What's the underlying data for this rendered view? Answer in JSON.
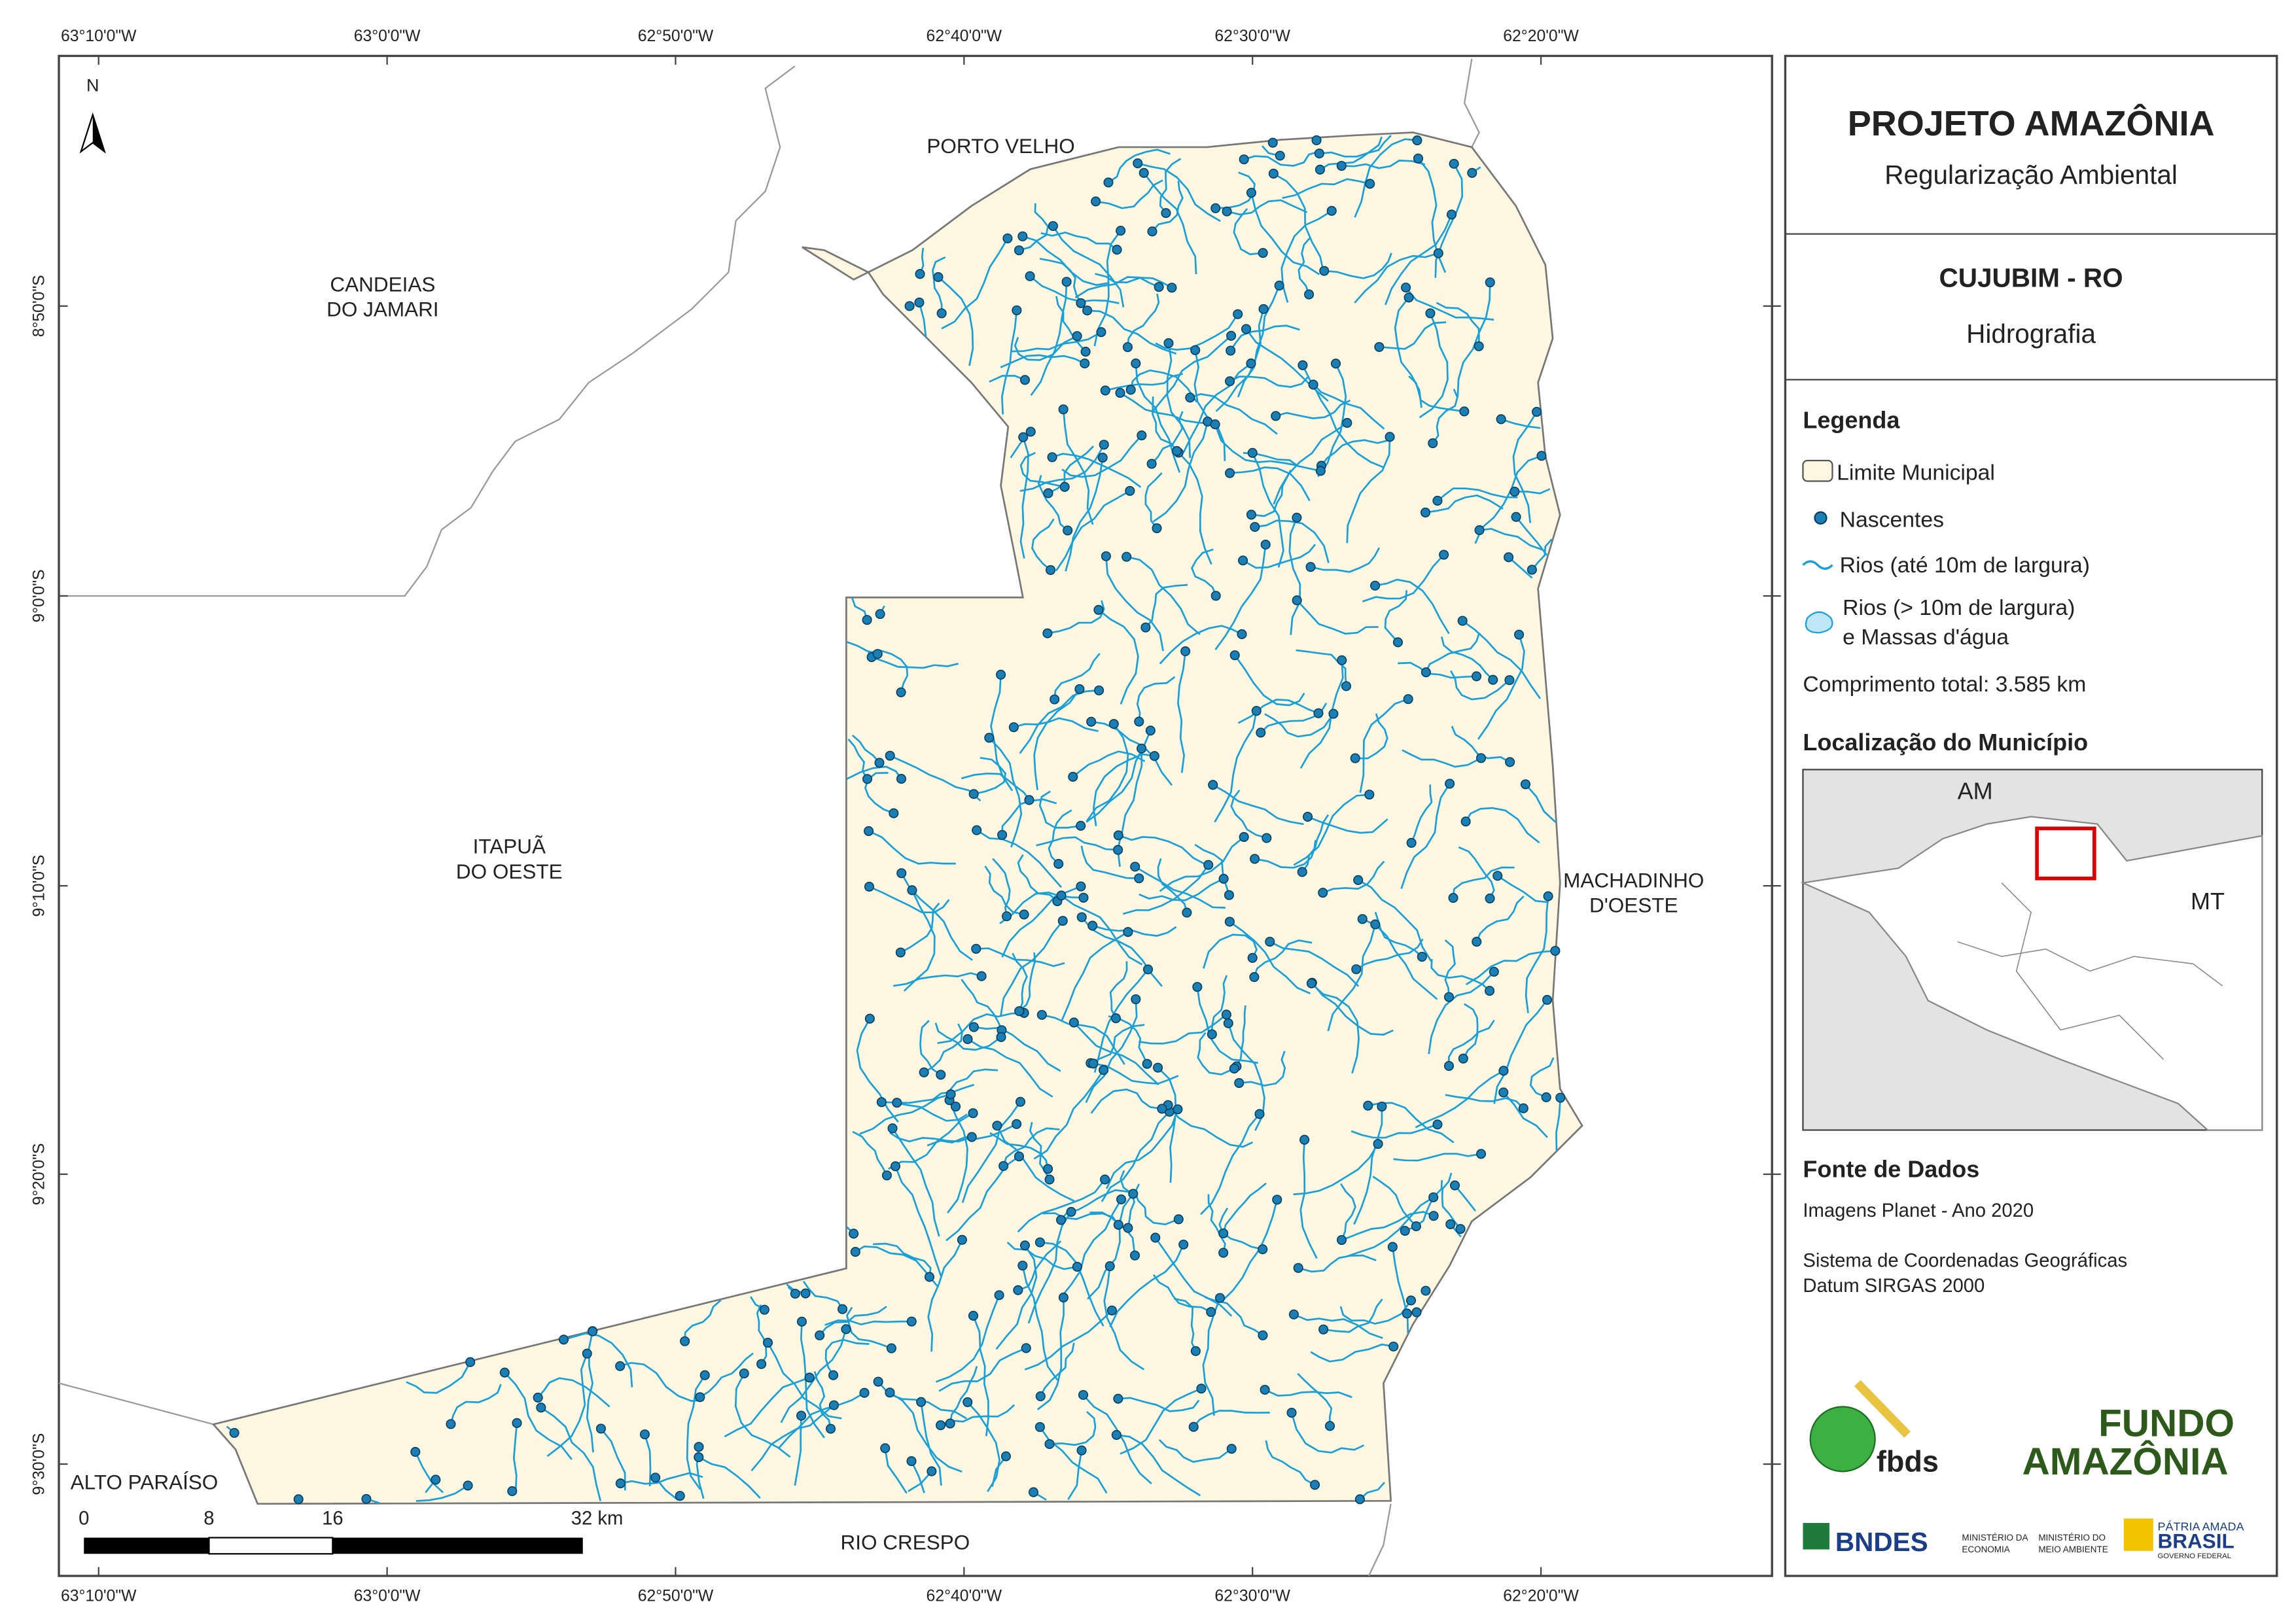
{
  "map": {
    "north": "N",
    "places": [
      [
        "PORTO VELHO"
      ],
      [
        "CANDEIAS",
        "DO JAMARI"
      ],
      [
        "ITAPUÃ",
        "DO OESTE"
      ],
      [
        "MACHADINHO",
        "D'OESTE"
      ],
      [
        "ALTO PARAÍSO"
      ],
      [
        "RIO CRESPO"
      ]
    ],
    "lon_labels": [
      "63°10'0\"W",
      "63°0'0\"W",
      "62°50'0\"W",
      "62°40'0\"W",
      "62°30'0\"W",
      "62°20'0\"W"
    ],
    "lat_labels": [
      "8°50'0\"S",
      "9°0'0\"S",
      "9°10'0\"S",
      "9°20'0\"S",
      "9°30'0\"S"
    ],
    "scale_labels": [
      "0",
      "8",
      "16",
      "32 km"
    ]
  },
  "panel": {
    "title": "PROJETO AMAZÔNIA",
    "subtitle": "Regularização Ambiental",
    "municipality": "CUJUBIM - RO",
    "theme": "Hidrografia",
    "legend": {
      "title": "Legenda",
      "boundary": "Limite Municipal",
      "springs": "Nascentes",
      "rivers": "Rios (até 10m de largura)",
      "wide_rivers": [
        "Rios (> 10m de largura)",
        "e Massas d'água"
      ]
    },
    "total_length": "Comprimento total:  3.585 km",
    "location": {
      "title": "Localização do Município",
      "labels": [
        "AM",
        "MT"
      ]
    },
    "sources": {
      "title": "Fonte de Dados",
      "lines": [
        "Imagens Planet - Ano 2020",
        "Sistema de Coordenadas Geográficas",
        "Datum SIRGAS 2000"
      ]
    },
    "logos": {
      "fbds": "fbds",
      "fundo": [
        "FUNDO",
        "AMAZÔNIA"
      ],
      "bndes": "BNDES",
      "min_econ": [
        "MINISTÉRIO DA",
        "ECONOMIA"
      ],
      "min_env": [
        "MINISTÉRIO DO",
        "MEIO AMBIENTE"
      ],
      "brasil": [
        "PÁTRIA AMADA",
        "BRASIL",
        "GOVERNO FEDERAL"
      ]
    }
  }
}
